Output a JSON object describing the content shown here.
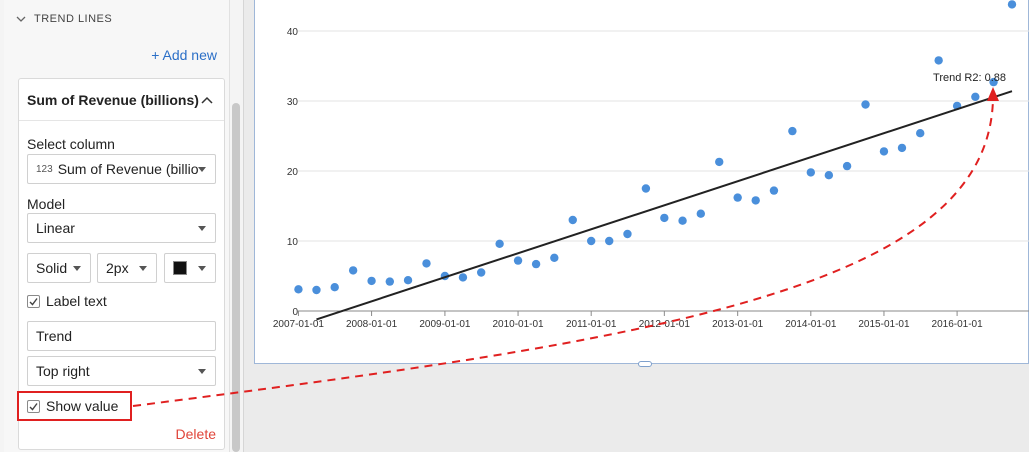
{
  "sidebar": {
    "section_title": "TREND LINES",
    "add_new_label": "+ Add new",
    "card": {
      "title": "Sum of Revenue (billions)",
      "select_column_label": "Select column",
      "column_type_icon": "123",
      "column_value": "Sum of Revenue (billio",
      "model_label": "Model",
      "model_value": "Linear",
      "line_style_value": "Solid",
      "line_width_value": "2px",
      "line_color": "#111111",
      "label_text_label": "Label text",
      "label_text_checked": true,
      "label_text_value": "Trend",
      "label_position_value": "Top right",
      "show_value_label": "Show value",
      "show_value_checked": true,
      "delete_label": "Delete"
    }
  },
  "chart_data": {
    "type": "scatter",
    "x_ticks": [
      "2007-01-01",
      "2008-01-01",
      "2009-01-01",
      "2010-01-01",
      "2011-01-01",
      "2012-01-01",
      "2013-01-01",
      "2014-01-01",
      "2015-01-01",
      "2016-01-01"
    ],
    "y_ticks": [
      0,
      10,
      20,
      30,
      40
    ],
    "xlim": [
      "2006-10-01",
      "2016-10-01"
    ],
    "ylim": [
      0,
      45
    ],
    "grid": true,
    "point_color": "#4a8fdb",
    "trend_color": "#222222",
    "trend_label": "Trend R2: 0.88",
    "trend_line": {
      "start": {
        "x": "2007-04-01",
        "y": -1.2
      },
      "end": {
        "x": "2016-10-01",
        "y": 31.4
      }
    },
    "points": [
      {
        "x": "2007-01-01",
        "y": 3.1
      },
      {
        "x": "2007-04-01",
        "y": 3.0
      },
      {
        "x": "2007-07-01",
        "y": 3.4
      },
      {
        "x": "2007-10-01",
        "y": 5.8
      },
      {
        "x": "2008-01-01",
        "y": 4.3
      },
      {
        "x": "2008-04-01",
        "y": 4.2
      },
      {
        "x": "2008-07-01",
        "y": 4.4
      },
      {
        "x": "2008-10-01",
        "y": 6.8
      },
      {
        "x": "2009-01-01",
        "y": 5.0
      },
      {
        "x": "2009-04-01",
        "y": 4.8
      },
      {
        "x": "2009-07-01",
        "y": 5.5
      },
      {
        "x": "2009-10-01",
        "y": 9.6
      },
      {
        "x": "2010-01-01",
        "y": 7.2
      },
      {
        "x": "2010-04-01",
        "y": 6.7
      },
      {
        "x": "2010-07-01",
        "y": 7.6
      },
      {
        "x": "2010-10-01",
        "y": 13.0
      },
      {
        "x": "2011-01-01",
        "y": 10.0
      },
      {
        "x": "2011-04-01",
        "y": 10.0
      },
      {
        "x": "2011-07-01",
        "y": 11.0
      },
      {
        "x": "2011-10-01",
        "y": 17.5
      },
      {
        "x": "2012-01-01",
        "y": 13.3
      },
      {
        "x": "2012-04-01",
        "y": 12.9
      },
      {
        "x": "2012-07-01",
        "y": 13.9
      },
      {
        "x": "2012-10-01",
        "y": 21.3
      },
      {
        "x": "2013-01-01",
        "y": 16.2
      },
      {
        "x": "2013-04-01",
        "y": 15.8
      },
      {
        "x": "2013-07-01",
        "y": 17.2
      },
      {
        "x": "2013-10-01",
        "y": 25.7
      },
      {
        "x": "2014-01-01",
        "y": 19.8
      },
      {
        "x": "2014-04-01",
        "y": 19.4
      },
      {
        "x": "2014-07-01",
        "y": 20.7
      },
      {
        "x": "2014-10-01",
        "y": 29.5
      },
      {
        "x": "2015-01-01",
        "y": 22.8
      },
      {
        "x": "2015-04-01",
        "y": 23.3
      },
      {
        "x": "2015-07-01",
        "y": 25.4
      },
      {
        "x": "2015-10-01",
        "y": 35.8
      },
      {
        "x": "2016-01-01",
        "y": 29.3
      },
      {
        "x": "2016-04-01",
        "y": 30.6
      },
      {
        "x": "2016-07-01",
        "y": 32.7
      },
      {
        "x": "2016-10-01",
        "y": 43.8
      }
    ]
  },
  "annotation": {
    "color": "#e02020"
  }
}
